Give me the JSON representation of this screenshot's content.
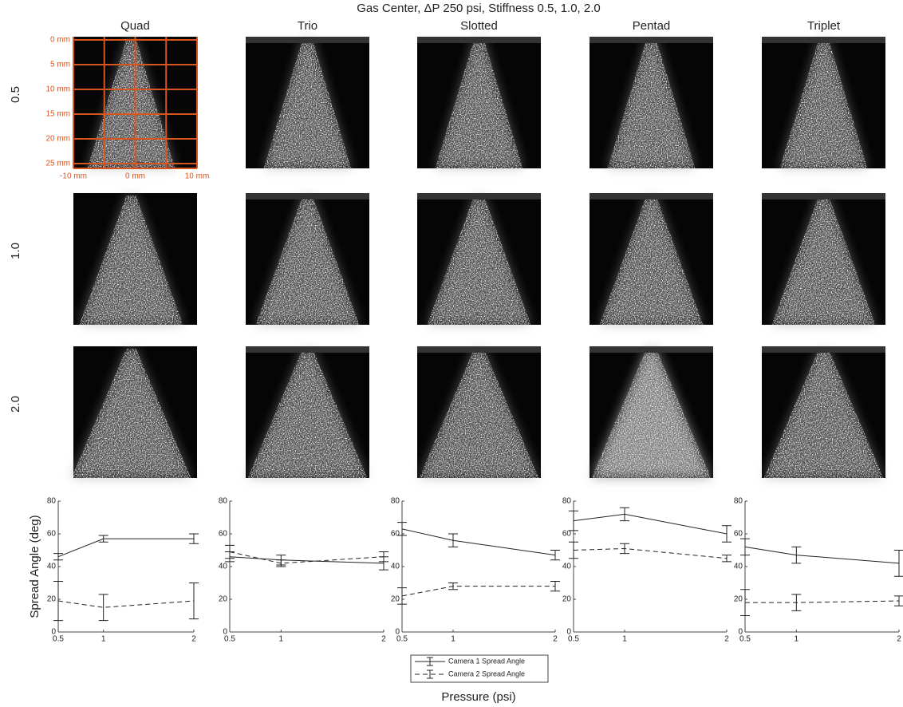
{
  "title": "Gas Center, ΔP 250 psi, Stiffness 0.5, 1.0, 2.0",
  "columns": [
    "Quad",
    "Trio",
    "Slotted",
    "Pentad",
    "Triplet"
  ],
  "rows": [
    "0.5",
    "1.0",
    "2.0"
  ],
  "image_axes": {
    "y_labels": [
      "0 mm",
      "5 mm",
      "10 mm",
      "15 mm",
      "20 mm",
      "25 mm"
    ],
    "x_labels": [
      "-10 mm",
      "0 mm",
      "10 mm"
    ]
  },
  "x_label": "Pressure (psi)",
  "chart_data": [
    {
      "type": "line",
      "y_label": "Spread Angle (deg)",
      "x": [
        0.5,
        1,
        2
      ],
      "xlim": [
        0.5,
        2
      ],
      "xticks": [
        0.5,
        1,
        2
      ],
      "ylim": [
        0,
        80
      ],
      "yticks": [
        0,
        20,
        40,
        60,
        80
      ],
      "series": [
        {
          "name": "Camera 1 Spread Angle",
          "color": "#222222",
          "line_style": "solid",
          "values": [
            46,
            57,
            57
          ],
          "errors": [
            2,
            2,
            3
          ]
        },
        {
          "name": "Camera 2 Spread Angle",
          "color": "#222222",
          "line_style": "dashed",
          "values": [
            19,
            15,
            19
          ],
          "errors": [
            12,
            8,
            11
          ]
        }
      ]
    },
    {
      "type": "line",
      "x": [
        0.5,
        1,
        2
      ],
      "xlim": [
        0.5,
        2
      ],
      "xticks": [
        0.5,
        1,
        2
      ],
      "ylim": [
        0,
        80
      ],
      "yticks": [
        0,
        20,
        40,
        60,
        80
      ],
      "series": [
        {
          "color": "#222222",
          "line_style": "solid",
          "values": [
            46,
            44,
            42
          ],
          "errors": [
            3,
            3,
            4
          ]
        },
        {
          "color": "#222222",
          "line_style": "dashed",
          "values": [
            49,
            42,
            46
          ],
          "errors": [
            4,
            2,
            3
          ]
        }
      ]
    },
    {
      "type": "line",
      "x": [
        0.5,
        1,
        2
      ],
      "xlim": [
        0.5,
        2
      ],
      "xticks": [
        0.5,
        1,
        2
      ],
      "ylim": [
        0,
        80
      ],
      "yticks": [
        0,
        20,
        40,
        60,
        80
      ],
      "series": [
        {
          "color": "#222222",
          "line_style": "solid",
          "values": [
            63,
            56,
            47
          ],
          "errors": [
            4,
            4,
            3
          ]
        },
        {
          "color": "#222222",
          "line_style": "dashed",
          "values": [
            22,
            28,
            28
          ],
          "errors": [
            5,
            2,
            3
          ]
        }
      ]
    },
    {
      "type": "line",
      "x": [
        0.5,
        1,
        2
      ],
      "xlim": [
        0.5,
        2
      ],
      "xticks": [
        0.5,
        1,
        2
      ],
      "ylim": [
        0,
        80
      ],
      "yticks": [
        0,
        20,
        40,
        60,
        80
      ],
      "series": [
        {
          "color": "#222222",
          "line_style": "solid",
          "values": [
            68,
            72,
            60
          ],
          "errors": [
            6,
            4,
            5
          ]
        },
        {
          "color": "#222222",
          "line_style": "dashed",
          "values": [
            50,
            51,
            45
          ],
          "errors": [
            5,
            3,
            2
          ]
        }
      ]
    },
    {
      "type": "line",
      "x": [
        0.5,
        1,
        2
      ],
      "xlim": [
        0.5,
        2
      ],
      "xticks": [
        0.5,
        1,
        2
      ],
      "ylim": [
        0,
        80
      ],
      "yticks": [
        0,
        20,
        40,
        60,
        80
      ],
      "series": [
        {
          "color": "#222222",
          "line_style": "solid",
          "values": [
            52,
            47,
            42
          ],
          "errors": [
            5,
            5,
            8
          ]
        },
        {
          "color": "#222222",
          "line_style": "dashed",
          "values": [
            18,
            18,
            19
          ],
          "errors": [
            8,
            5,
            3
          ]
        }
      ]
    }
  ]
}
